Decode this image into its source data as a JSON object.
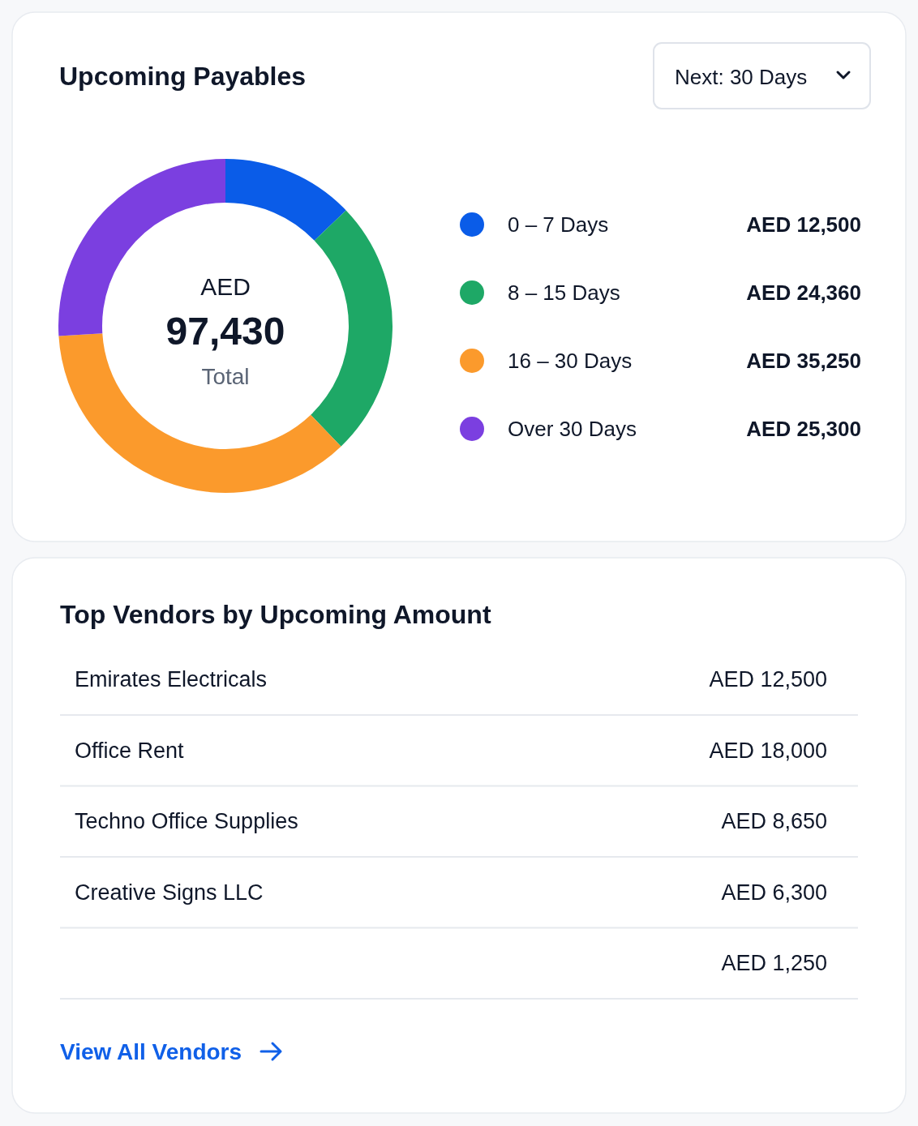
{
  "chart_data": [
    {
      "type": "donut",
      "title": "Upcoming Payables",
      "categories": [
        "0 – 7 Days",
        "8 – 15 Days",
        "16 – 30 Days",
        "Over 30 Days"
      ],
      "values": [
        12500,
        24360,
        35250,
        25300
      ],
      "colors": [
        "#0a5ce8",
        "#1ea866",
        "#fb9a2c",
        "#7b3fe0"
      ],
      "value_labels": [
        "AED 12,500",
        "AED 24,360",
        "AED 35,250",
        "AED 25,300"
      ],
      "legend": "right",
      "annotations": [
        "AED",
        "97,430",
        "Total",
        "Next: 30 Days"
      ]
    },
    {
      "type": "other",
      "title": "Top Vendors by Upcoming Amount",
      "categories": [
        "Emirates Electricals",
        "Office Rent",
        "Techno Office Supplies",
        "Creative Signs LLC",
        null
      ],
      "value_labels": [
        "AED 12,500",
        "AED 18,000",
        "AED 8,650",
        "AED 6,300",
        "AED 1,250"
      ],
      "annotations": [
        "View All Vendors"
      ]
    }
  ]
}
